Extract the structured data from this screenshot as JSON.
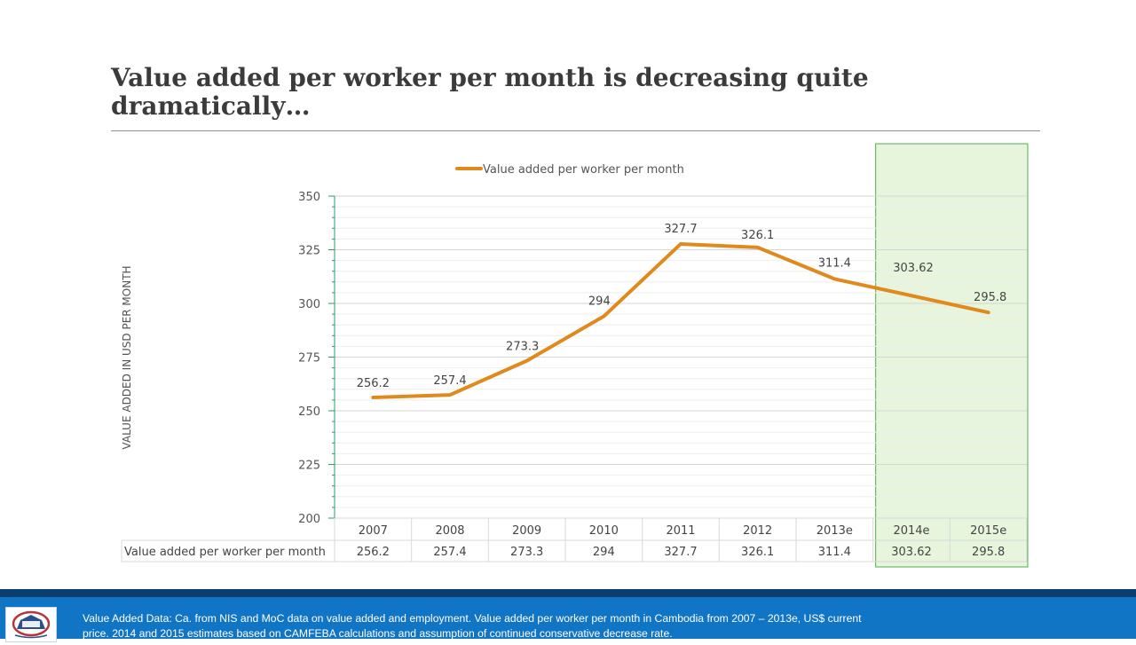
{
  "slide": {
    "title": "Value added per worker per month is decreasing quite\ndramatically…",
    "footnote": "Value Added Data:  Ca. from NIS and MoC data on value added and employment.   Value added per worker per month in Cambodia from 2007 – 2013e, US$ current price.  2014 and 2015 estimates based on CAMFEBA calculations and assumption of continued conservative decrease rate."
  },
  "colors": {
    "line": "#e08a1e",
    "highlight_fill": "#e7f5dc",
    "highlight_border": "#4caf50",
    "axis": "#2e9a6a",
    "footer": "#1175c6"
  },
  "chart_data": {
    "type": "line",
    "title": "",
    "xlabel": "",
    "ylabel": "VALUE ADDED IN USD PER MONTH",
    "categories": [
      "2007",
      "2008",
      "2009",
      "2010",
      "2011",
      "2012",
      "2013e",
      "2014e",
      "2015e"
    ],
    "series": [
      {
        "name": "Value added per  worker per month",
        "values": [
          256.2,
          257.4,
          273.3,
          294,
          327.7,
          326.1,
          311.4,
          303.62,
          295.8
        ]
      }
    ],
    "data_labels": [
      "256.2",
      "257.4",
      "273.3",
      "294",
      "327.7",
      "326.1",
      "311.4",
      "303.62",
      "295.8"
    ],
    "y_ticks": [
      "200",
      "225",
      "250",
      "275",
      "300",
      "325",
      "350"
    ],
    "ylim": [
      200,
      350
    ],
    "y_major_step": 25,
    "y_minor_step": 5,
    "grid": true,
    "legend_position": "top",
    "data_table": true,
    "highlighted_categories": [
      "2014e",
      "2015e"
    ]
  }
}
